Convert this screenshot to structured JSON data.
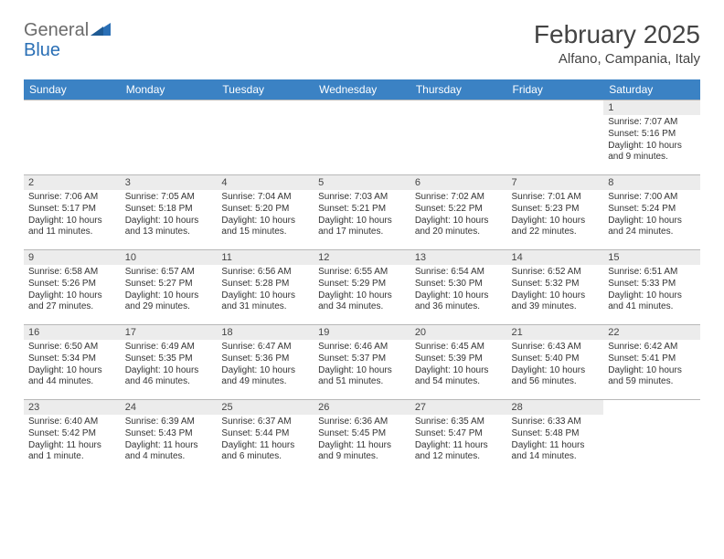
{
  "logo": {
    "text1": "General",
    "text2": "Blue"
  },
  "title": "February 2025",
  "location": "Alfano, Campania, Italy",
  "colors": {
    "header_bg": "#3b82c4",
    "header_text": "#ffffff",
    "daynum_bg": "#ececec",
    "border": "#b8b8b8",
    "logo_gray": "#6b6b6b",
    "logo_blue": "#2a6fb5"
  },
  "weekdays": [
    "Sunday",
    "Monday",
    "Tuesday",
    "Wednesday",
    "Thursday",
    "Friday",
    "Saturday"
  ],
  "grid": [
    [
      {
        "empty": true
      },
      {
        "empty": true
      },
      {
        "empty": true
      },
      {
        "empty": true
      },
      {
        "empty": true
      },
      {
        "empty": true
      },
      {
        "day": "1",
        "sunrise": "Sunrise: 7:07 AM",
        "sunset": "Sunset: 5:16 PM",
        "daylight": "Daylight: 10 hours and 9 minutes."
      }
    ],
    [
      {
        "day": "2",
        "sunrise": "Sunrise: 7:06 AM",
        "sunset": "Sunset: 5:17 PM",
        "daylight": "Daylight: 10 hours and 11 minutes."
      },
      {
        "day": "3",
        "sunrise": "Sunrise: 7:05 AM",
        "sunset": "Sunset: 5:18 PM",
        "daylight": "Daylight: 10 hours and 13 minutes."
      },
      {
        "day": "4",
        "sunrise": "Sunrise: 7:04 AM",
        "sunset": "Sunset: 5:20 PM",
        "daylight": "Daylight: 10 hours and 15 minutes."
      },
      {
        "day": "5",
        "sunrise": "Sunrise: 7:03 AM",
        "sunset": "Sunset: 5:21 PM",
        "daylight": "Daylight: 10 hours and 17 minutes."
      },
      {
        "day": "6",
        "sunrise": "Sunrise: 7:02 AM",
        "sunset": "Sunset: 5:22 PM",
        "daylight": "Daylight: 10 hours and 20 minutes."
      },
      {
        "day": "7",
        "sunrise": "Sunrise: 7:01 AM",
        "sunset": "Sunset: 5:23 PM",
        "daylight": "Daylight: 10 hours and 22 minutes."
      },
      {
        "day": "8",
        "sunrise": "Sunrise: 7:00 AM",
        "sunset": "Sunset: 5:24 PM",
        "daylight": "Daylight: 10 hours and 24 minutes."
      }
    ],
    [
      {
        "day": "9",
        "sunrise": "Sunrise: 6:58 AM",
        "sunset": "Sunset: 5:26 PM",
        "daylight": "Daylight: 10 hours and 27 minutes."
      },
      {
        "day": "10",
        "sunrise": "Sunrise: 6:57 AM",
        "sunset": "Sunset: 5:27 PM",
        "daylight": "Daylight: 10 hours and 29 minutes."
      },
      {
        "day": "11",
        "sunrise": "Sunrise: 6:56 AM",
        "sunset": "Sunset: 5:28 PM",
        "daylight": "Daylight: 10 hours and 31 minutes."
      },
      {
        "day": "12",
        "sunrise": "Sunrise: 6:55 AM",
        "sunset": "Sunset: 5:29 PM",
        "daylight": "Daylight: 10 hours and 34 minutes."
      },
      {
        "day": "13",
        "sunrise": "Sunrise: 6:54 AM",
        "sunset": "Sunset: 5:30 PM",
        "daylight": "Daylight: 10 hours and 36 minutes."
      },
      {
        "day": "14",
        "sunrise": "Sunrise: 6:52 AM",
        "sunset": "Sunset: 5:32 PM",
        "daylight": "Daylight: 10 hours and 39 minutes."
      },
      {
        "day": "15",
        "sunrise": "Sunrise: 6:51 AM",
        "sunset": "Sunset: 5:33 PM",
        "daylight": "Daylight: 10 hours and 41 minutes."
      }
    ],
    [
      {
        "day": "16",
        "sunrise": "Sunrise: 6:50 AM",
        "sunset": "Sunset: 5:34 PM",
        "daylight": "Daylight: 10 hours and 44 minutes."
      },
      {
        "day": "17",
        "sunrise": "Sunrise: 6:49 AM",
        "sunset": "Sunset: 5:35 PM",
        "daylight": "Daylight: 10 hours and 46 minutes."
      },
      {
        "day": "18",
        "sunrise": "Sunrise: 6:47 AM",
        "sunset": "Sunset: 5:36 PM",
        "daylight": "Daylight: 10 hours and 49 minutes."
      },
      {
        "day": "19",
        "sunrise": "Sunrise: 6:46 AM",
        "sunset": "Sunset: 5:37 PM",
        "daylight": "Daylight: 10 hours and 51 minutes."
      },
      {
        "day": "20",
        "sunrise": "Sunrise: 6:45 AM",
        "sunset": "Sunset: 5:39 PM",
        "daylight": "Daylight: 10 hours and 54 minutes."
      },
      {
        "day": "21",
        "sunrise": "Sunrise: 6:43 AM",
        "sunset": "Sunset: 5:40 PM",
        "daylight": "Daylight: 10 hours and 56 minutes."
      },
      {
        "day": "22",
        "sunrise": "Sunrise: 6:42 AM",
        "sunset": "Sunset: 5:41 PM",
        "daylight": "Daylight: 10 hours and 59 minutes."
      }
    ],
    [
      {
        "day": "23",
        "sunrise": "Sunrise: 6:40 AM",
        "sunset": "Sunset: 5:42 PM",
        "daylight": "Daylight: 11 hours and 1 minute."
      },
      {
        "day": "24",
        "sunrise": "Sunrise: 6:39 AM",
        "sunset": "Sunset: 5:43 PM",
        "daylight": "Daylight: 11 hours and 4 minutes."
      },
      {
        "day": "25",
        "sunrise": "Sunrise: 6:37 AM",
        "sunset": "Sunset: 5:44 PM",
        "daylight": "Daylight: 11 hours and 6 minutes."
      },
      {
        "day": "26",
        "sunrise": "Sunrise: 6:36 AM",
        "sunset": "Sunset: 5:45 PM",
        "daylight": "Daylight: 11 hours and 9 minutes."
      },
      {
        "day": "27",
        "sunrise": "Sunrise: 6:35 AM",
        "sunset": "Sunset: 5:47 PM",
        "daylight": "Daylight: 11 hours and 12 minutes."
      },
      {
        "day": "28",
        "sunrise": "Sunrise: 6:33 AM",
        "sunset": "Sunset: 5:48 PM",
        "daylight": "Daylight: 11 hours and 14 minutes."
      },
      {
        "empty": true
      }
    ]
  ]
}
